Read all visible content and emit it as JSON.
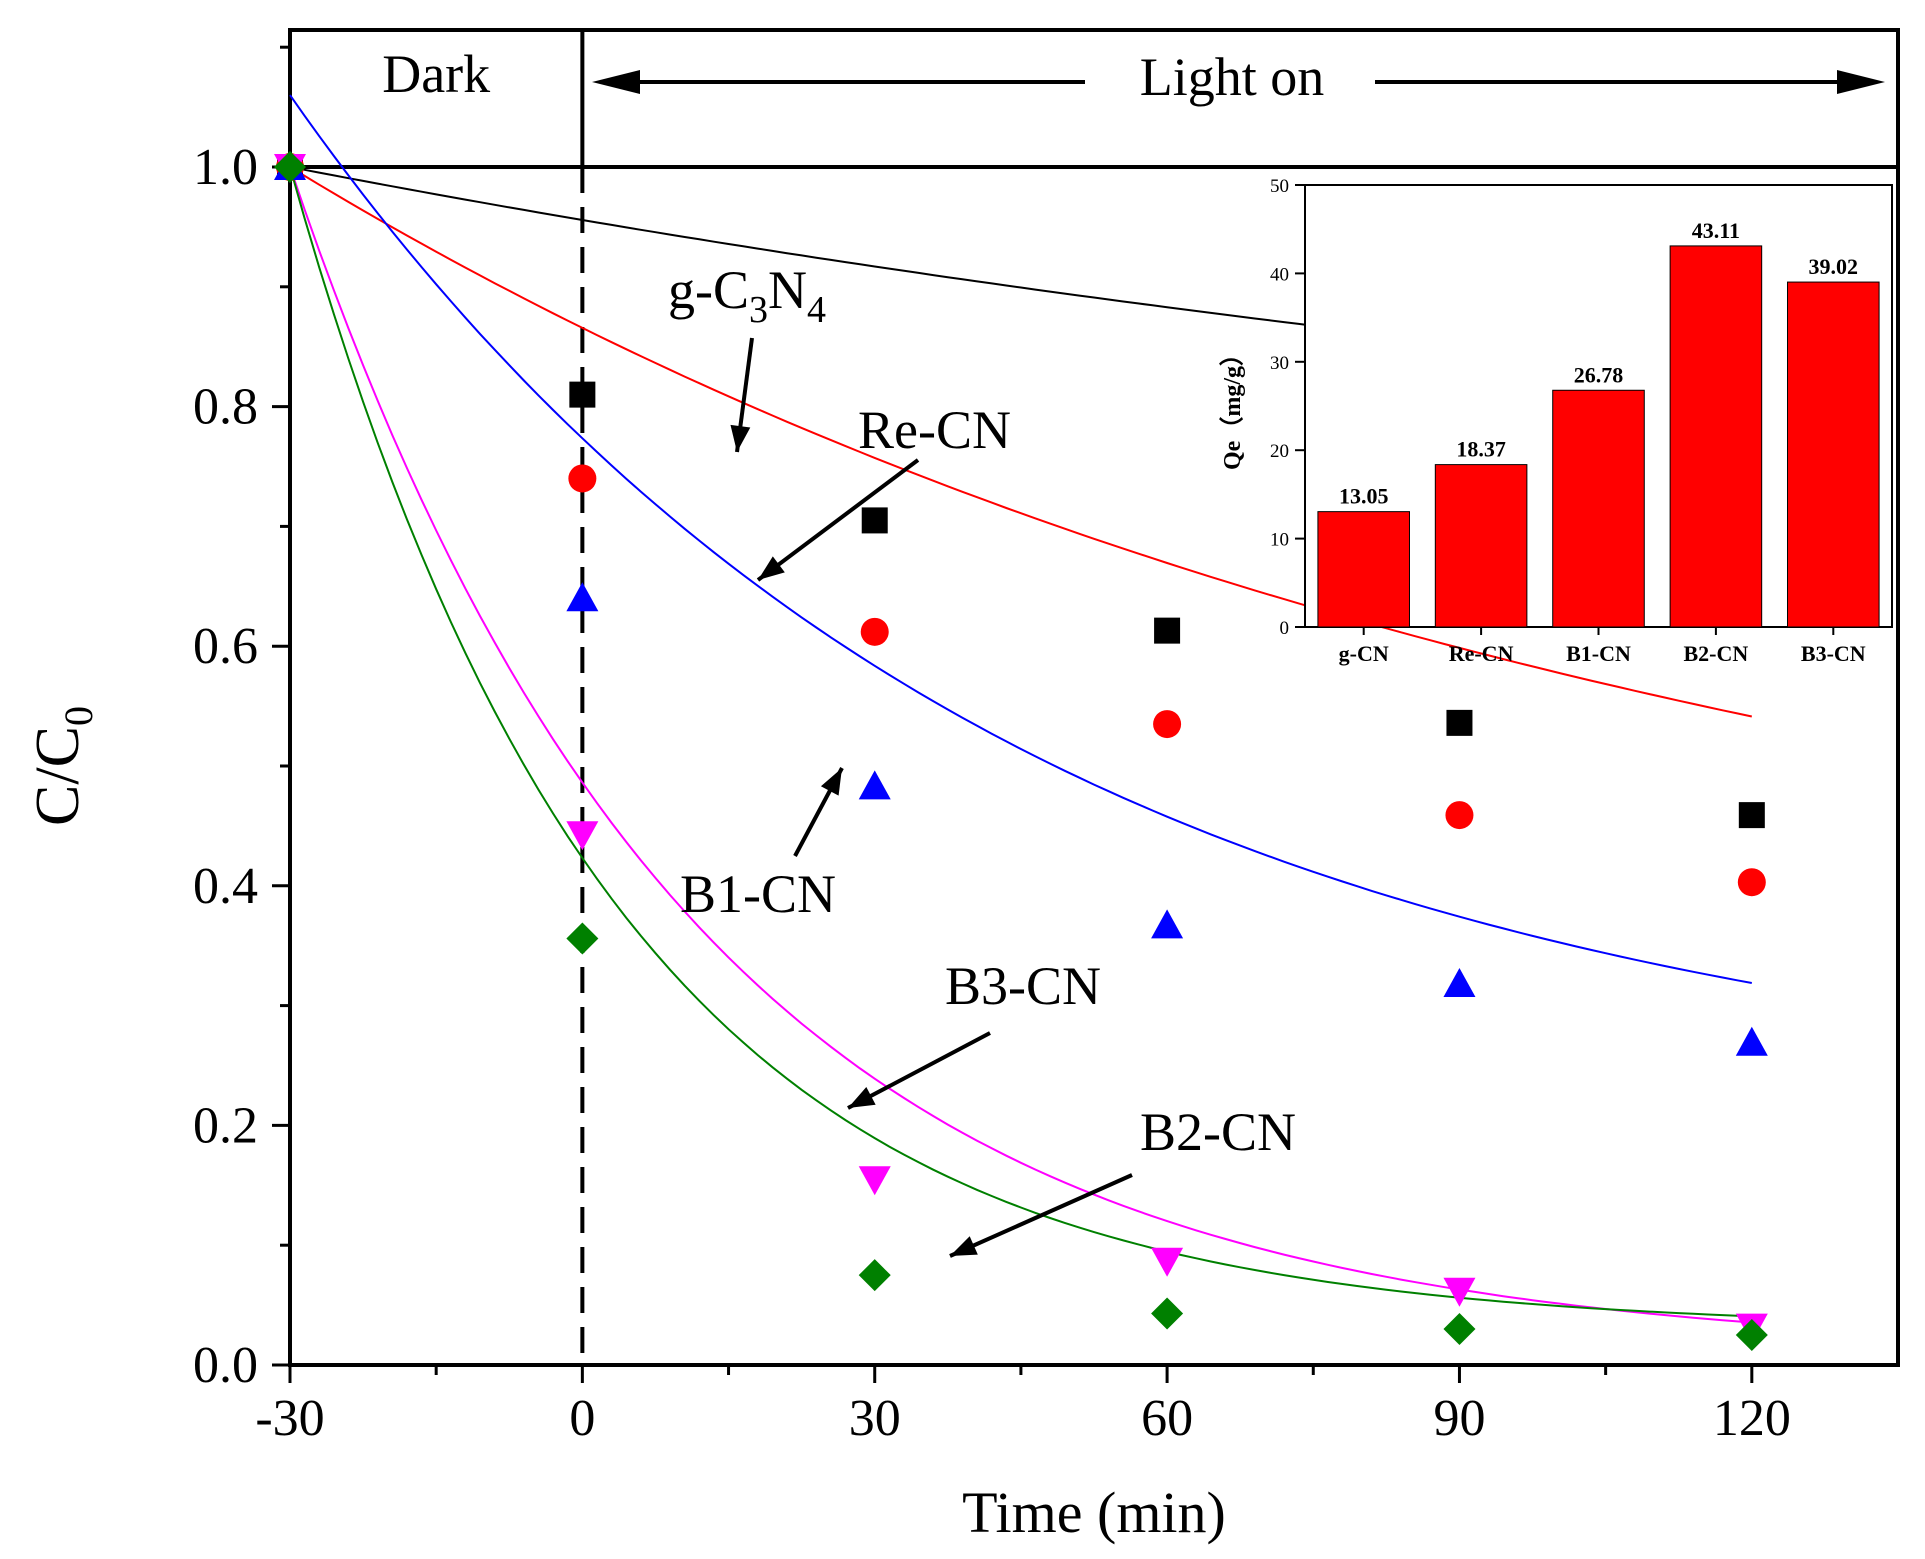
{
  "chart_data": [
    {
      "type": "scatter",
      "title": "",
      "xlabel": "Time (min)",
      "ylabel": "C/C0",
      "ylabel_main": "C/C",
      "ylabel_sub": "0",
      "xlim": [
        -30,
        135
      ],
      "ylim": [
        0,
        1.1
      ],
      "xticks": [
        -30,
        0,
        30,
        60,
        90,
        120
      ],
      "xtick_labels": [
        "-30",
        "0",
        "30",
        "60",
        "90",
        "120"
      ],
      "yticks": [
        0,
        0.2,
        0.4,
        0.6,
        0.8,
        1.0
      ],
      "ytick_labels": [
        "0.0",
        "0.2",
        "0.4",
        "0.6",
        "0.8",
        "1.0"
      ],
      "dark_label": "Dark",
      "light_label": "Light on",
      "series": [
        {
          "name": "g-C3N4",
          "color": "#000000",
          "marker": "square",
          "points": [
            [
              -30,
              1.0
            ],
            [
              0,
              0.81
            ],
            [
              30,
              0.705
            ],
            [
              60,
              0.613
            ],
            [
              90,
              0.536
            ],
            [
              120,
              0.459
            ]
          ],
          "fit": {
            "a": 0.36,
            "k": 0.00437,
            "c": 0.64
          }
        },
        {
          "name": "Re-CN",
          "color": "#ff0000",
          "marker": "circle",
          "points": [
            [
              -30,
              1.0
            ],
            [
              0,
              0.74
            ],
            [
              30,
              0.612
            ],
            [
              60,
              0.535
            ],
            [
              90,
              0.459
            ],
            [
              120,
              0.403
            ]
          ],
          "fit": {
            "a": 0.7,
            "k": 0.0071,
            "c": 0.3
          }
        },
        {
          "name": "B1-CN",
          "color": "#0000ff",
          "marker": "triangle-up",
          "points": [
            [
              -30,
              1.0
            ],
            [
              0,
              0.64
            ],
            [
              30,
              0.483
            ],
            [
              60,
              0.367
            ],
            [
              90,
              0.318
            ],
            [
              120,
              0.269
            ]
          ],
          "fit": {
            "a": 0.85,
            "k": 0.0137,
            "c": 0.21
          }
        },
        {
          "name": "B3-CN",
          "color": "#ff00ff",
          "marker": "triangle-down",
          "points": [
            [
              -30,
              1.0
            ],
            [
              0,
              0.443
            ],
            [
              30,
              0.155
            ],
            [
              60,
              0.087
            ],
            [
              90,
              0.062
            ],
            [
              120,
              0.032
            ]
          ],
          "fit": {
            "a": 0.99,
            "k": 0.0244,
            "c": 0.01
          }
        },
        {
          "name": "B2-CN",
          "color": "#008000",
          "marker": "diamond",
          "points": [
            [
              -30,
              1.0
            ],
            [
              0,
              0.356
            ],
            [
              30,
              0.075
            ],
            [
              60,
              0.043
            ],
            [
              90,
              0.03
            ],
            [
              120,
              0.025
            ]
          ],
          "fit": {
            "a": 0.97,
            "k": 0.0301,
            "c": 0.03
          }
        }
      ],
      "annotations": {
        "g_c3n4": {
          "prefix": "g-C",
          "sub1": "3",
          "mid": "N",
          "sub2": "4"
        },
        "re_cn": "Re-CN",
        "b1_cn": "B1-CN",
        "b3_cn": "B3-CN",
        "b2_cn": "B2-CN"
      }
    },
    {
      "type": "bar",
      "title": "",
      "xlabel": "",
      "ylabel": "Qe（mg/g）",
      "ylim": [
        0,
        50
      ],
      "yticks": [
        0,
        10,
        20,
        30,
        40,
        50
      ],
      "ytick_labels": [
        "0",
        "10",
        "20",
        "30",
        "40",
        "50"
      ],
      "categories": [
        "g-CN",
        "Re-CN",
        "B1-CN",
        "B2-CN",
        "B3-CN"
      ],
      "values": [
        13.05,
        18.37,
        26.78,
        43.11,
        39.02
      ],
      "value_labels": [
        "13.05",
        "18.37",
        "26.78",
        "43.11",
        "39.02"
      ],
      "color": "#ff0000"
    }
  ]
}
